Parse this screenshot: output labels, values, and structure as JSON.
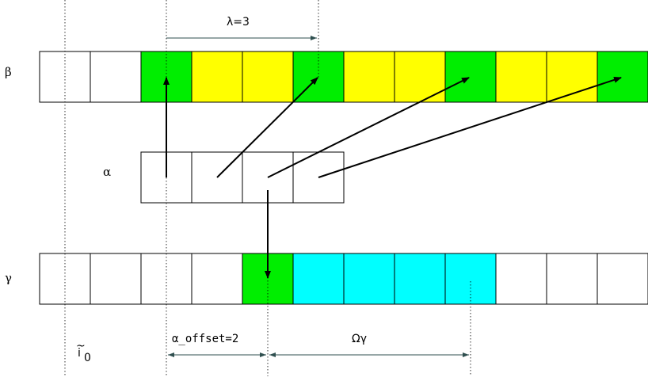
{
  "labels": {
    "beta": "β",
    "alpha": "α",
    "gamma": "γ",
    "lambda": "λ=3",
    "alpha_offset": "α_offset=2",
    "omega_gamma": "Ωγ",
    "i0_base": "i",
    "i0_tilde": "~",
    "i0_sub": "0"
  },
  "colors": {
    "green": "#00ee00",
    "yellow": "#ffff00",
    "cyan": "#00ffff",
    "white": "#ffffff"
  },
  "arrays": {
    "beta": [
      "white",
      "white",
      "green",
      "yellow",
      "yellow",
      "green",
      "yellow",
      "yellow",
      "green",
      "yellow",
      "yellow",
      "green"
    ],
    "alpha": [
      "white",
      "white",
      "white",
      "white"
    ],
    "gamma": [
      "white",
      "white",
      "white",
      "white",
      "green",
      "cyan",
      "cyan",
      "cyan",
      "cyan",
      "white",
      "white",
      "white"
    ]
  }
}
